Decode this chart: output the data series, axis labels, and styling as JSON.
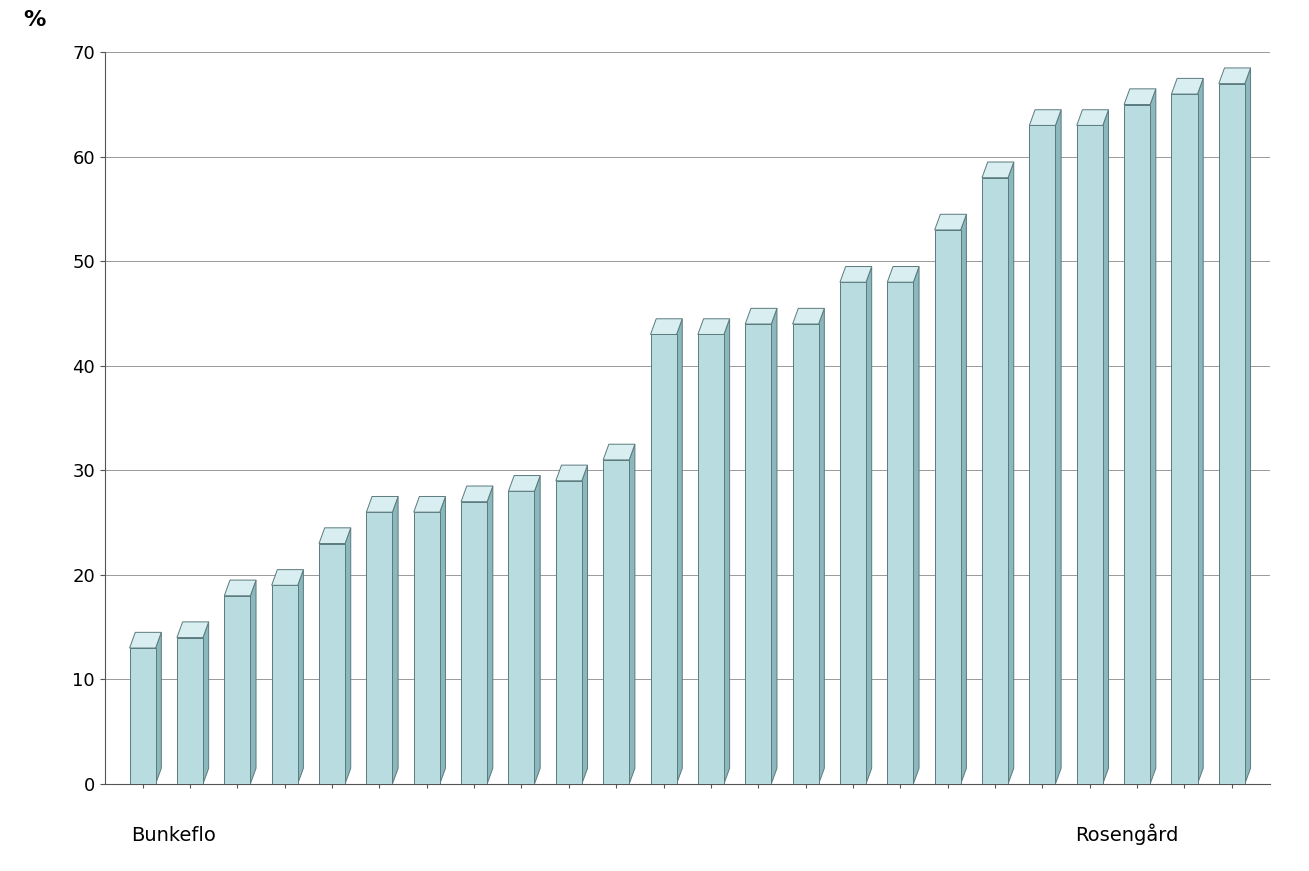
{
  "values": [
    13,
    14,
    18,
    19,
    23,
    26,
    26,
    27,
    28,
    29,
    31,
    43,
    43,
    44,
    44,
    48,
    48,
    53,
    58,
    63,
    63,
    65,
    66,
    67
  ],
  "bar_face_color": "#b8dce0",
  "bar_edge_color": "#5a7a7e",
  "bar_side_color": "#8ab8bc",
  "bar_top_color": "#d8eef0",
  "ylabel": "%",
  "ylim": [
    0,
    70
  ],
  "yticks": [
    0,
    10,
    20,
    30,
    40,
    50,
    60,
    70
  ],
  "xlabel_left": "Bunkeflo",
  "xlabel_right": "Rosengård",
  "ylabel_fontsize": 16,
  "xlabel_fontsize": 14,
  "background_color": "#ffffff",
  "grid_color": "#999999"
}
